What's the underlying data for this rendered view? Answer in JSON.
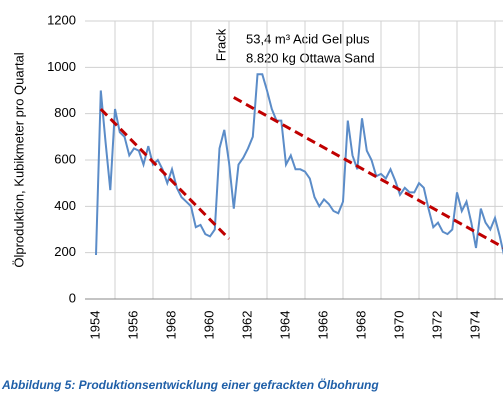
{
  "chart_data": {
    "type": "line",
    "ylabel": "Ölproduktion, Kubikmeter pro Quartal",
    "caption": "Abbildung 5: Produktionsentwicklung einer gefrackten Ölbohrung",
    "annotations": [
      "Frack",
      "53,4 m³ Acid Gel plus",
      "8.820 kg Ottawa Sand"
    ],
    "categories": [
      "1954",
      null,
      null,
      null,
      null,
      null,
      null,
      null,
      "1956",
      null,
      null,
      null,
      null,
      null,
      null,
      null,
      "1968",
      null,
      null,
      null,
      null,
      null,
      null,
      null,
      "1960",
      null,
      null,
      null,
      null,
      null,
      null,
      null,
      "1962",
      null,
      null,
      null,
      null,
      null,
      null,
      null,
      "1964",
      null,
      null,
      null,
      null,
      null,
      null,
      null,
      "1966",
      null,
      null,
      null,
      null,
      null,
      null,
      null,
      "1968",
      null,
      null,
      null,
      null,
      null,
      null,
      null,
      "1970",
      null,
      null,
      null,
      null,
      null,
      null,
      null,
      "1972",
      null,
      null,
      null,
      null,
      null,
      null,
      null,
      "1974",
      null,
      null,
      null,
      null,
      null,
      null
    ],
    "series": [
      {
        "color": "#5b8cc8",
        "values": [
          190,
          900,
          680,
          470,
          820,
          720,
          700,
          620,
          650,
          640,
          580,
          660,
          580,
          600,
          560,
          500,
          560,
          480,
          440,
          420,
          400,
          310,
          320,
          280,
          270,
          300,
          650,
          730,
          590,
          390,
          580,
          610,
          650,
          700,
          970,
          970,
          900,
          820,
          770,
          770,
          580,
          620,
          560,
          560,
          550,
          520,
          440,
          400,
          430,
          410,
          380,
          370,
          420,
          770,
          620,
          560,
          780,
          640,
          600,
          530,
          540,
          520,
          560,
          510,
          450,
          480,
          460,
          460,
          500,
          480,
          390,
          310,
          330,
          290,
          280,
          300,
          460,
          380,
          420,
          330,
          220,
          390,
          330,
          300,
          350,
          270,
          180
        ]
      }
    ],
    "trend_lines": [
      {
        "color": "#c00000",
        "start": [
          1,
          820
        ],
        "end": [
          28,
          260
        ]
      },
      {
        "color": "#c00000",
        "start": [
          29,
          870
        ],
        "end": [
          86,
          220
        ]
      }
    ],
    "ylim": [
      0,
      1200
    ],
    "yticks": [
      0,
      200,
      400,
      600,
      800,
      1000,
      1200
    ],
    "grid": true
  }
}
